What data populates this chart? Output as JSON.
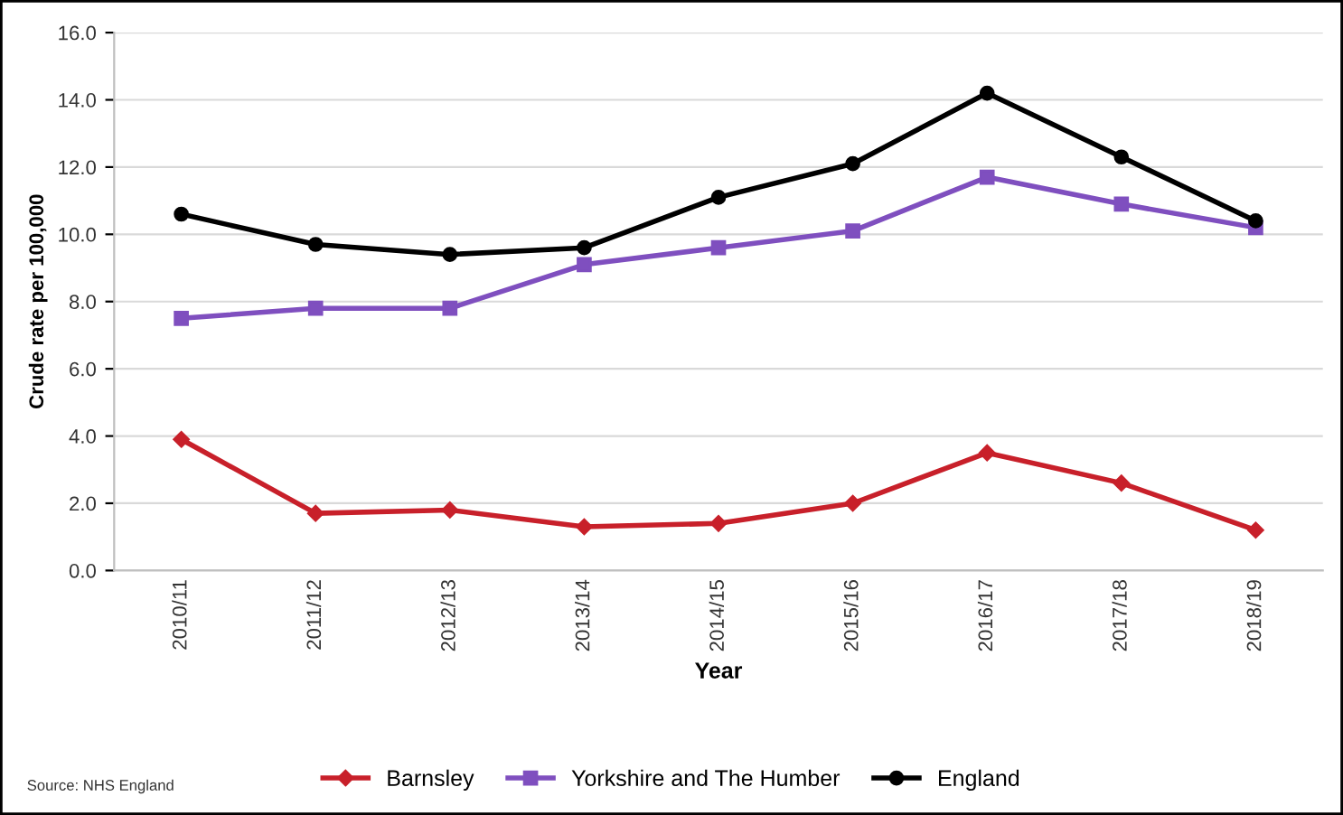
{
  "chart_data": {
    "type": "line",
    "xlabel": "Year",
    "ylabel": "Crude rate per 100,000",
    "categories": [
      "2010/11",
      "2011/12",
      "2012/13",
      "2013/14",
      "2014/15",
      "2015/16",
      "2016/17",
      "2017/18",
      "2018/19"
    ],
    "series": [
      {
        "name": "Barnsley",
        "color": "#c8202a",
        "marker": "diamond",
        "values": [
          3.9,
          1.7,
          1.8,
          1.3,
          1.4,
          2.0,
          3.5,
          2.6,
          1.2
        ]
      },
      {
        "name": "Yorkshire and The Humber",
        "color": "#7f4fbf",
        "marker": "square",
        "values": [
          7.5,
          7.8,
          7.8,
          9.1,
          9.6,
          10.1,
          11.7,
          10.9,
          10.2
        ]
      },
      {
        "name": "England",
        "color": "#000000",
        "marker": "circle",
        "values": [
          10.6,
          9.7,
          9.4,
          9.6,
          11.1,
          12.1,
          14.2,
          12.3,
          10.4
        ]
      }
    ],
    "ylim": [
      0,
      16
    ],
    "yticks": [
      {
        "value": 0,
        "label": "0.0"
      },
      {
        "value": 2,
        "label": "2.0"
      },
      {
        "value": 4,
        "label": "4.0"
      },
      {
        "value": 6,
        "label": "6.0"
      },
      {
        "value": 8,
        "label": "8.0"
      },
      {
        "value": 10,
        "label": "10.0"
      },
      {
        "value": 12,
        "label": "12.0"
      },
      {
        "value": 14,
        "label": "14.0"
      },
      {
        "value": 16,
        "label": "16.0"
      }
    ],
    "grid": "y",
    "legend": "bottom",
    "line_style": "solid",
    "annotations": [
      "Source: NHS England"
    ]
  }
}
